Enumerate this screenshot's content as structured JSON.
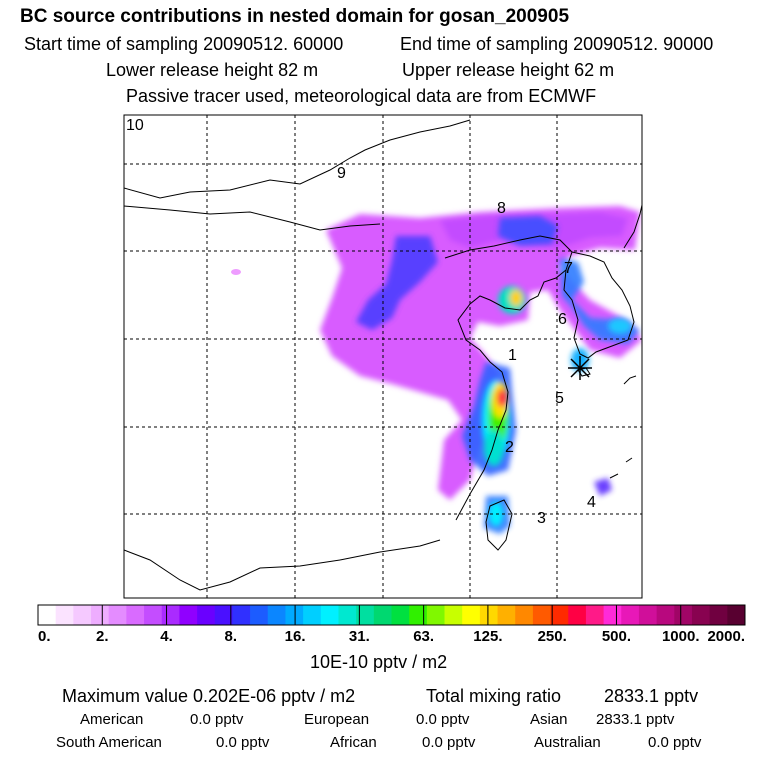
{
  "header": {
    "title": "BC  source contributions in nested domain for gosan_200905",
    "start_time": "Start time of sampling 20090512. 60000",
    "end_time": "End time of sampling 20090512. 90000",
    "lower_height": "Lower release height   82 m",
    "upper_height": "Upper release height   62 m",
    "tracer_note": "Passive tracer used, meteorological data are from ECMWF"
  },
  "map": {
    "region_labels": [
      "10",
      "9",
      "8",
      "7",
      "6",
      "1",
      "5",
      "2",
      "4",
      "3"
    ]
  },
  "legend": {
    "tick_labels": [
      "0.",
      "2.",
      "4.",
      "8.",
      "16.",
      "31.",
      "63.",
      "125.",
      "250.",
      "500.",
      "1000.",
      "2000."
    ],
    "unit_label": "10E-10 pptv / m2",
    "colors": [
      "#ffffff",
      "#fbe3ff",
      "#f5c9ff",
      "#eeadff",
      "#e48cff",
      "#d96bff",
      "#c44dff",
      "#aa2bff",
      "#9000ff",
      "#6a00ff",
      "#4a10ff",
      "#3030ff",
      "#1c5cff",
      "#0b86ff",
      "#00aaff",
      "#00cfff",
      "#00f0ff",
      "#00e8d0",
      "#00dfa0",
      "#00d870",
      "#00e040",
      "#30f000",
      "#80f800",
      "#c8ff00",
      "#ffff00",
      "#ffd800",
      "#ffb000",
      "#ff8800",
      "#ff5a00",
      "#ff2a00",
      "#ff0044",
      "#ff1a88",
      "#ff2ad8",
      "#e818b8",
      "#d00f9a",
      "#b8087e",
      "#a00566",
      "#880250",
      "#700040",
      "#580030"
    ]
  },
  "summary": {
    "max_value": "Maximum value  0.202E-06 pptv / m2",
    "total_mixing": "Total mixing ratio",
    "total_mixing_value": "2833.1 pptv",
    "american_label": "American",
    "american_value": "0.0 pptv",
    "european_label": "European",
    "european_value": "0.0 pptv",
    "asian_label": "Asian",
    "asian_value": "2833.1 pptv",
    "south_american_label": "South American",
    "south_american_value": "0.0 pptv",
    "african_label": "African",
    "african_value": "0.0 pptv",
    "australian_label": "Australian",
    "australian_value": "0.0 pptv"
  }
}
